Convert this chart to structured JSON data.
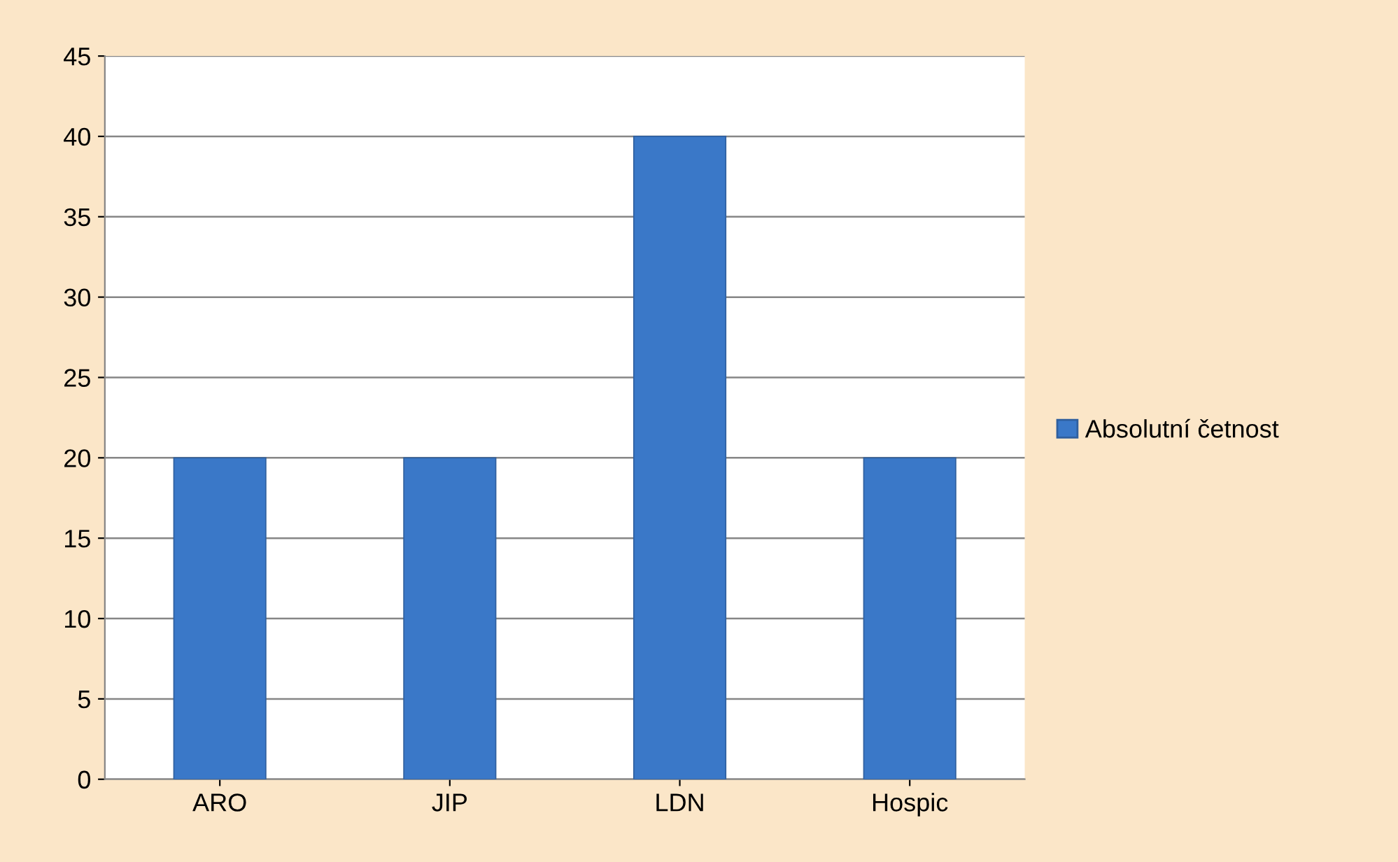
{
  "chart_data": {
    "type": "bar",
    "categories": [
      "ARO",
      "JIP",
      "LDN",
      "Hospic"
    ],
    "series": [
      {
        "name": "Absolutní četnost",
        "color": "#3a78c8",
        "values": [
          20,
          20,
          40,
          20
        ]
      }
    ],
    "ylim": [
      0,
      45
    ],
    "yticks": [
      0,
      5,
      10,
      15,
      20,
      25,
      30,
      35,
      40,
      45
    ],
    "grid": "y",
    "legend": "right"
  }
}
